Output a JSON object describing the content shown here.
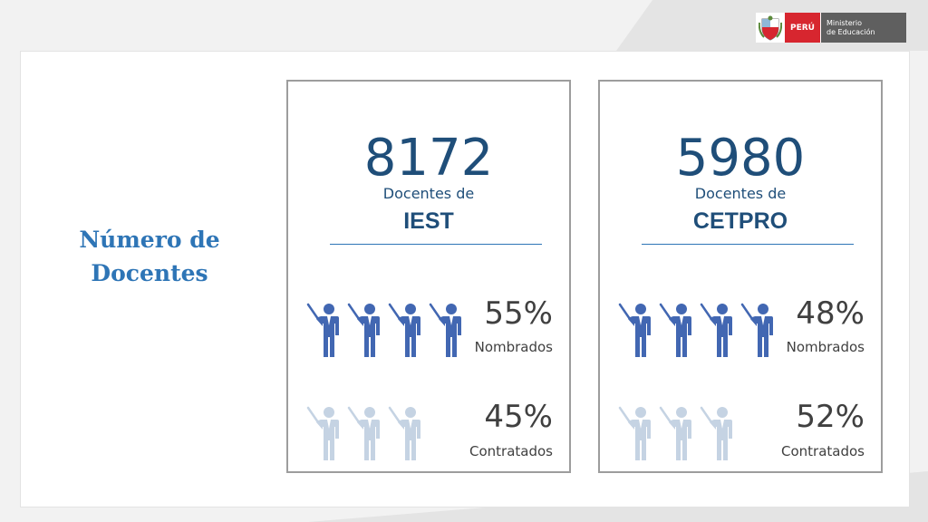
{
  "logo": {
    "country": "PERÚ",
    "ministry_line1": "Ministerio",
    "ministry_line2": "de Educación"
  },
  "heading": {
    "line1": "Número de",
    "line2": "Docentes"
  },
  "cards": [
    {
      "count": "8172",
      "subtitle": "Docentes de",
      "institution": "IEST",
      "nombrados": {
        "percent": "55%",
        "label": "Nombrados",
        "icons": 4
      },
      "contratados": {
        "percent": "45%",
        "label": "Contratados",
        "icons": 3
      }
    },
    {
      "count": "5980",
      "subtitle": "Docentes de",
      "institution": "CETPRO",
      "nombrados": {
        "percent": "48%",
        "label": "Nombrados",
        "icons": 4
      },
      "contratados": {
        "percent": "52%",
        "label": "Contratados",
        "icons": 3
      }
    }
  ],
  "colors": {
    "accent_dark": "#1f4e79",
    "icon_primary": "#4267b2",
    "icon_muted": "#c5d3e3",
    "heading": "#2e75b6",
    "logo_red": "#d7262f"
  },
  "icon_name": "teacher-pointer-icon"
}
